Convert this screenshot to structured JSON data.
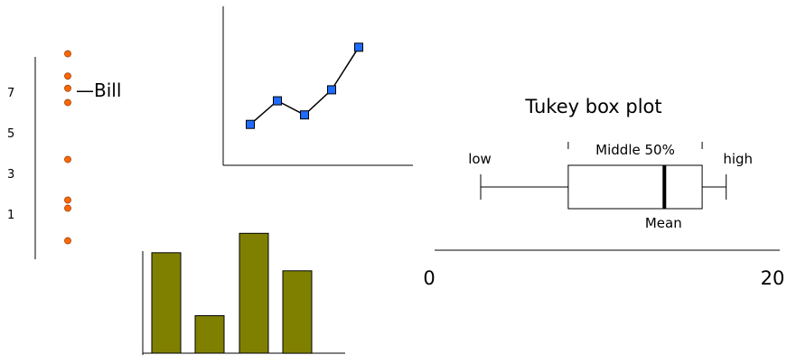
{
  "chart_data": [
    {
      "type": "scatter",
      "y_ticks": [
        "7",
        "5",
        "3",
        "1"
      ],
      "y_tick_values": [
        7,
        5,
        3,
        1
      ],
      "ylim": [
        -0.2,
        9.2
      ],
      "points": [
        8.8,
        7.7,
        7.1,
        6.4,
        3.6,
        1.6,
        1.2,
        -0.4
      ],
      "annotation": {
        "text": "—Bill",
        "point_index": 1
      },
      "marker_color": "#ff6600"
    },
    {
      "type": "line",
      "x": [
        1,
        2,
        3,
        4,
        5
      ],
      "values": [
        1.3,
        2.8,
        1.9,
        3.5,
        6.2
      ],
      "xlim": [
        0,
        7
      ],
      "ylim": [
        -1.3,
        8.8
      ],
      "marker_color": "#1e6bff"
    },
    {
      "type": "bar",
      "categories": [
        "",
        "",
        "",
        ""
      ],
      "values": [
        6.7,
        2.5,
        8.0,
        5.5
      ],
      "ylim": [
        0,
        8.8
      ],
      "bar_color": "#808000"
    },
    {
      "type": "box",
      "title": "Tukey box plot",
      "labels": {
        "low": "low",
        "middle": "Middle 50%",
        "high": "high",
        "mean": "Mean"
      },
      "xlim": [
        0,
        20
      ],
      "axis_ticks": [
        "0",
        "20"
      ],
      "whisker_low": 3.0,
      "q1": 8.1,
      "mean": 13.7,
      "q3": 15.9,
      "whisker_high": 17.3
    }
  ]
}
